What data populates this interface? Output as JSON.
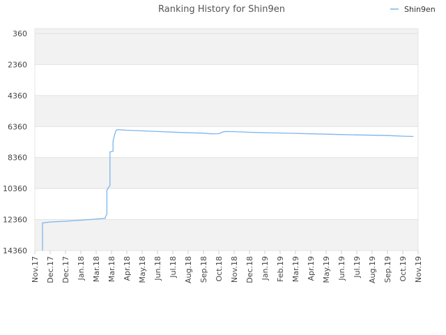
{
  "chart_data": {
    "type": "line",
    "title": "Ranking History for Shin9en",
    "xlabel": "",
    "ylabel": "",
    "y_reversed": true,
    "ylim": [
      360,
      14360
    ],
    "y_ticks": [
      "360",
      "2360",
      "4360",
      "6360",
      "8360",
      "10360",
      "12360",
      "14360"
    ],
    "x_ticks": [
      "Nov.17",
      "Dec.17",
      "Dec.17",
      "Jan.18",
      "Mar.18",
      "Mar.18",
      "Apr.18",
      "May.18",
      "Jun.18",
      "Jul.18",
      "Aug.18",
      "Sep.18",
      "Oct.18",
      "Nov.18",
      "Dec.18",
      "Jan.19",
      "Feb.19",
      "Mar.19",
      "Apr.19",
      "May.19",
      "Jun.19",
      "Jul.19",
      "Aug.19",
      "Sep.19",
      "Oct.19",
      "Nov.19"
    ],
    "grid": true,
    "legend_position": "top-right",
    "series": [
      {
        "name": "Shin9en",
        "color": "#7cb5ec",
        "points": [
          [
            0.5,
            14360
          ],
          [
            0.5,
            12580
          ],
          [
            1.0,
            12520
          ],
          [
            2.0,
            12470
          ],
          [
            3.0,
            12400
          ],
          [
            4.0,
            12330
          ],
          [
            4.6,
            12280
          ],
          [
            4.6,
            12200
          ],
          [
            4.7,
            12000
          ],
          [
            4.7,
            10460
          ],
          [
            4.9,
            10150
          ],
          [
            4.9,
            8000
          ],
          [
            5.1,
            7950
          ],
          [
            5.1,
            7300
          ],
          [
            5.2,
            6900
          ],
          [
            5.3,
            6600
          ],
          [
            5.4,
            6560
          ],
          [
            6.0,
            6600
          ],
          [
            7.0,
            6640
          ],
          [
            8.0,
            6680
          ],
          [
            9.0,
            6720
          ],
          [
            10.0,
            6760
          ],
          [
            11.0,
            6790
          ],
          [
            11.5,
            6830
          ],
          [
            12.0,
            6820
          ],
          [
            12.3,
            6700
          ],
          [
            12.5,
            6680
          ],
          [
            13.0,
            6690
          ],
          [
            14.0,
            6730
          ],
          [
            15.0,
            6760
          ],
          [
            16.0,
            6780
          ],
          [
            17.0,
            6800
          ],
          [
            18.0,
            6830
          ],
          [
            19.0,
            6850
          ],
          [
            20.0,
            6880
          ],
          [
            21.0,
            6900
          ],
          [
            22.0,
            6920
          ],
          [
            23.0,
            6940
          ],
          [
            24.0,
            6980
          ],
          [
            24.7,
            7000
          ]
        ]
      }
    ]
  }
}
